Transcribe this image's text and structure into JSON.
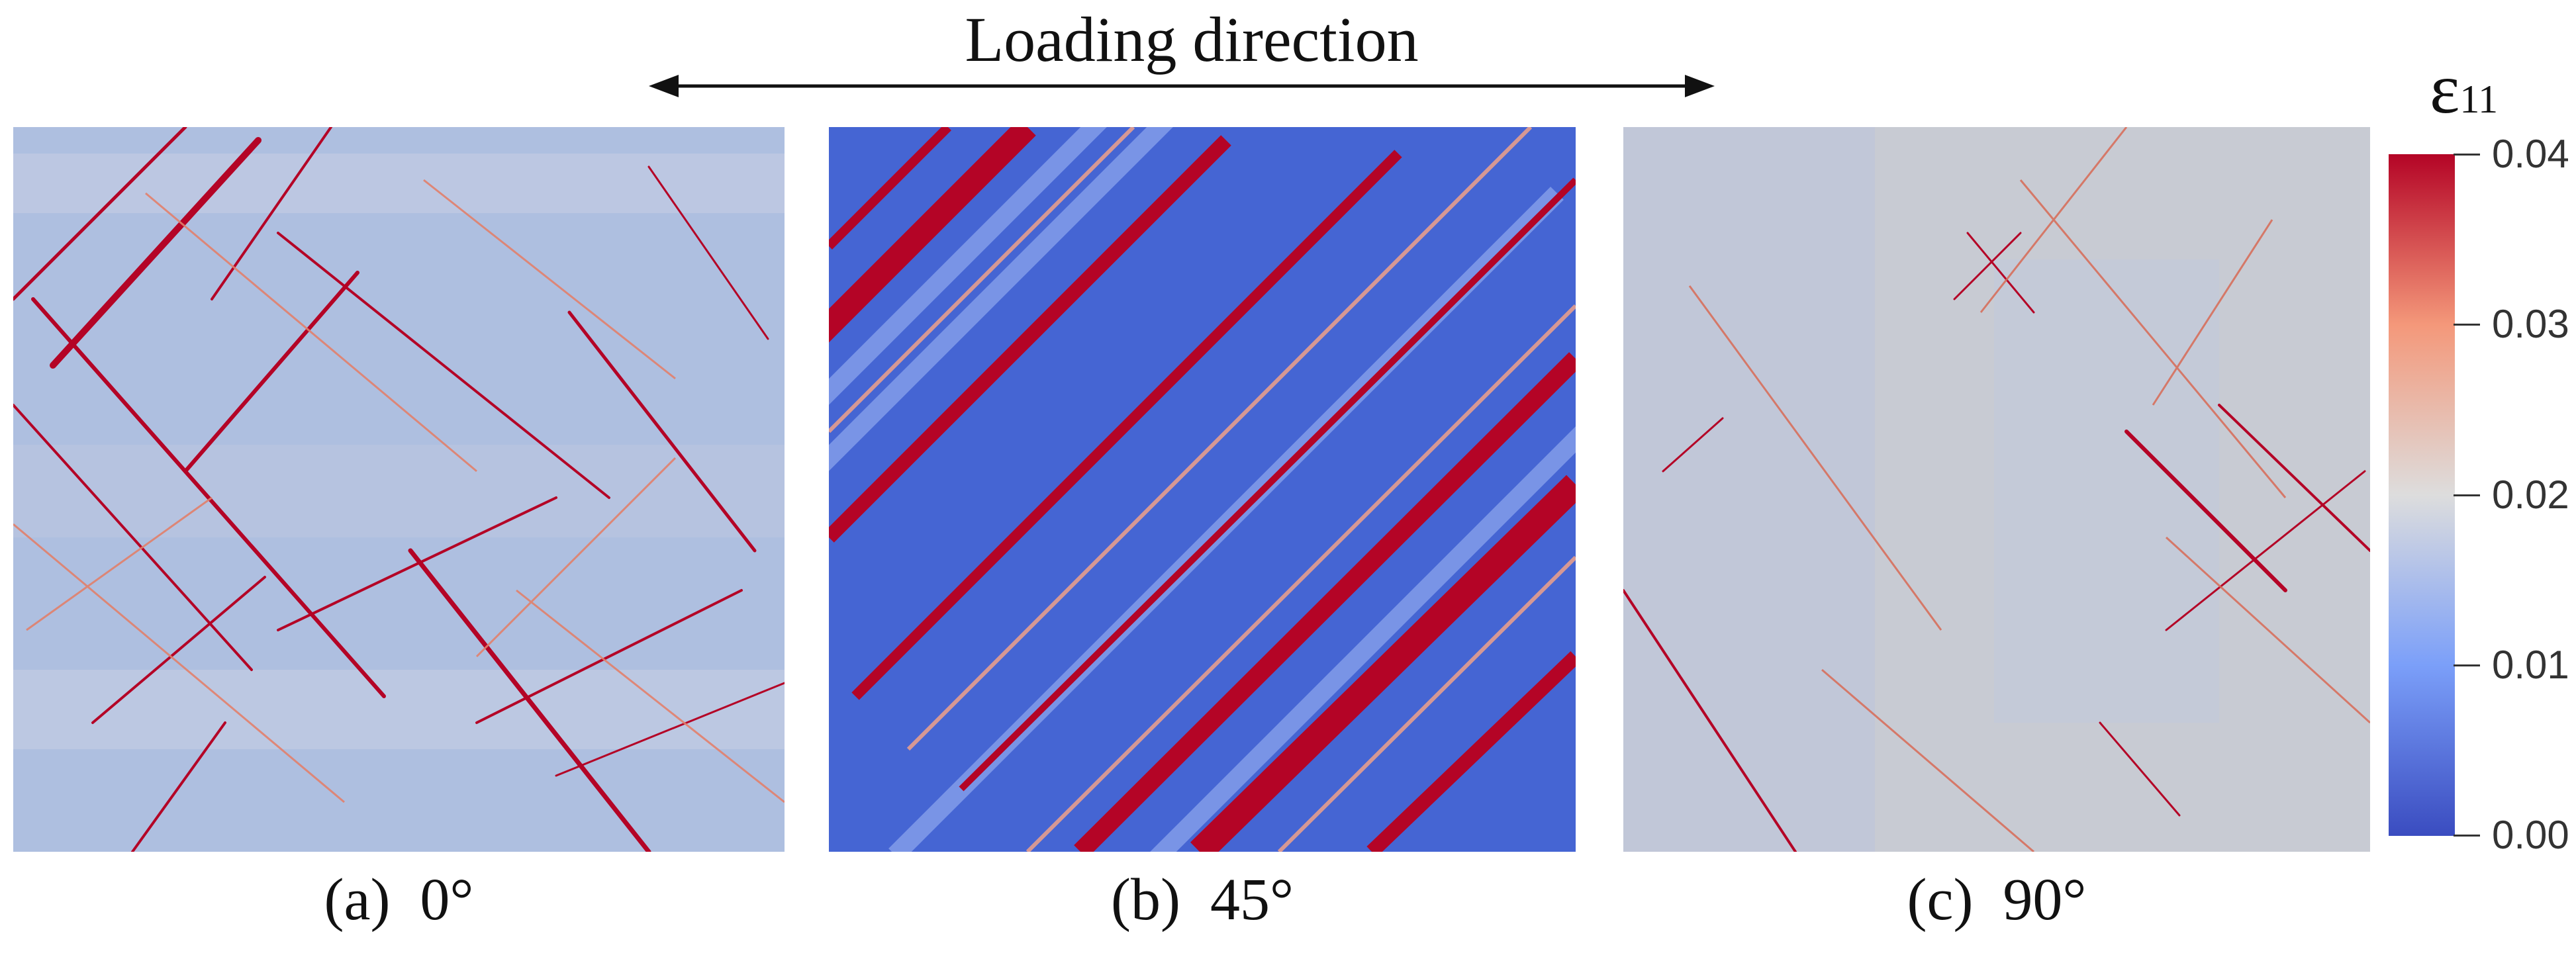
{
  "figure": {
    "title": "Loading direction",
    "colorbar": {
      "symbol": "ε",
      "subscript": "11",
      "ticks": [
        "0.04",
        "0.03",
        "0.02",
        "0.01",
        "0.00"
      ],
      "range": [
        0.0,
        0.04
      ],
      "colors": [
        "#3a4cc0",
        "#7b9ff9",
        "#dddddd",
        "#f4987a",
        "#b40426"
      ]
    },
    "panels": [
      {
        "caption": "(a)  0°",
        "orientation_deg": 0,
        "background": "#aebfe0",
        "band": "#b40426"
      },
      {
        "caption": "(b)  45°",
        "orientation_deg": 45,
        "background": "#4565d3",
        "band": "#b40426"
      },
      {
        "caption": "(c)  90°",
        "orientation_deg": 90,
        "background": "#c8cbd3",
        "band": "#c0362e"
      }
    ]
  }
}
